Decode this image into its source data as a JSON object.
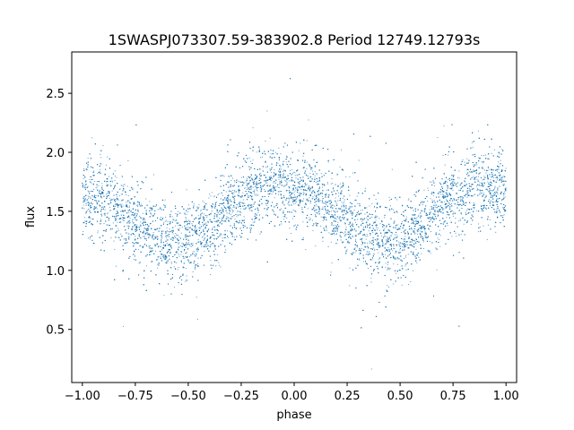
{
  "chart_data": {
    "type": "scatter",
    "title": "1SWASPJ073307.59-383902.8 Period 12749.12793s",
    "xlabel": "phase",
    "ylabel": "flux",
    "xlim": [
      -1.05,
      1.05
    ],
    "ylim": [
      0.05,
      2.85
    ],
    "x_ticks": [
      -1.0,
      -0.75,
      -0.5,
      -0.25,
      0.0,
      0.25,
      0.5,
      0.75,
      1.0
    ],
    "x_tick_labels": [
      "−1.00",
      "−0.75",
      "−0.50",
      "−0.25",
      "0.00",
      "0.25",
      "0.50",
      "0.75",
      "1.00"
    ],
    "y_ticks": [
      0.5,
      1.0,
      1.5,
      2.0,
      2.5
    ],
    "y_tick_labels": [
      "0.5",
      "1.0",
      "1.5",
      "2.0",
      "2.5"
    ],
    "grid": false,
    "marker_color": "#1f77b4",
    "series": [
      {
        "phase_range": [
          -1.0,
          1.0
        ],
        "trend": {
          "phase": [
            -1.0,
            -0.9,
            -0.8,
            -0.7,
            -0.6,
            -0.55,
            -0.5,
            -0.4,
            -0.3,
            -0.2,
            -0.1,
            0.0,
            0.1,
            0.2,
            0.3,
            0.4,
            0.45,
            0.5,
            0.6,
            0.7,
            0.8,
            0.9,
            1.0
          ],
          "flux": [
            1.62,
            1.58,
            1.47,
            1.34,
            1.26,
            1.24,
            1.25,
            1.35,
            1.52,
            1.67,
            1.72,
            1.7,
            1.62,
            1.49,
            1.35,
            1.26,
            1.24,
            1.26,
            1.38,
            1.56,
            1.67,
            1.71,
            1.66
          ]
        },
        "scatter_sigma": 0.16,
        "approx_point_count": 12000
      }
    ]
  }
}
